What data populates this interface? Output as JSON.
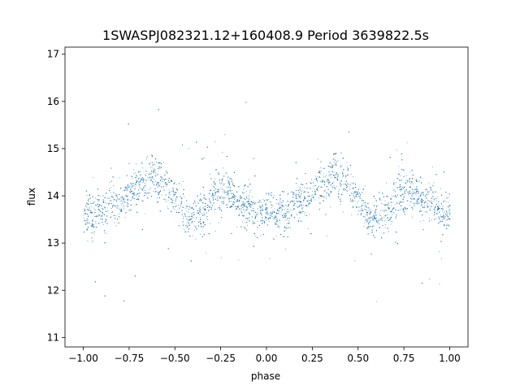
{
  "chart_data": {
    "type": "scatter",
    "title": "1SWASPJ082321.12+160408.9 Period 3639822.5s",
    "xlabel": "phase",
    "ylabel": "flux",
    "xlim": [
      -1.1,
      1.1
    ],
    "ylim": [
      10.8,
      17.15
    ],
    "xticks": [
      -1.0,
      -0.75,
      -0.5,
      -0.25,
      0.0,
      0.25,
      0.5,
      0.75,
      1.0
    ],
    "xtick_labels": [
      "−1.00",
      "−0.75",
      "−0.50",
      "−0.25",
      "0.00",
      "0.25",
      "0.50",
      "0.75",
      "1.00"
    ],
    "yticks": [
      11,
      12,
      13,
      14,
      15,
      16,
      17
    ],
    "ytick_labels": [
      "11",
      "12",
      "13",
      "14",
      "15",
      "16",
      "17"
    ],
    "grid": false,
    "series": [
      {
        "color": "#1f77b4",
        "marker_size": "tiny",
        "x": [
          -1.0,
          -0.97,
          -0.95,
          -0.92,
          -0.9,
          -0.87,
          -0.85,
          -0.82,
          -0.8,
          -0.77,
          -0.75,
          -0.72,
          -0.7,
          -0.67,
          -0.65,
          -0.62,
          -0.6,
          -0.57,
          -0.55,
          -0.52,
          -0.5,
          -0.47,
          -0.45,
          -0.42,
          -0.4,
          -0.37,
          -0.35,
          -0.32,
          -0.3,
          -0.27,
          -0.25,
          -0.22,
          -0.2,
          -0.17,
          -0.15,
          -0.12,
          -0.1,
          -0.07,
          -0.05,
          -0.02,
          0.0,
          0.03,
          0.05,
          0.08,
          0.1,
          0.13,
          0.15,
          0.18,
          0.2,
          0.23,
          0.25,
          0.28,
          0.3,
          0.33,
          0.35,
          0.38,
          0.4,
          0.43,
          0.45,
          0.48,
          0.5,
          0.53,
          0.55,
          0.58,
          0.6,
          0.63,
          0.65,
          0.68,
          0.7,
          0.73,
          0.75,
          0.78,
          0.8,
          0.83,
          0.85,
          0.88,
          0.9,
          0.93,
          0.95,
          0.98,
          1.0
        ],
        "y": [
          13.6,
          13.7,
          13.5,
          13.8,
          13.6,
          13.7,
          13.9,
          13.8,
          13.9,
          14.0,
          14.1,
          14.2,
          14.3,
          14.2,
          14.4,
          14.5,
          14.3,
          14.4,
          14.2,
          14.1,
          13.9,
          13.8,
          13.6,
          13.5,
          13.6,
          13.7,
          13.6,
          13.8,
          14.0,
          14.1,
          14.0,
          14.2,
          14.1,
          14.0,
          13.9,
          13.8,
          13.9,
          13.7,
          13.6,
          13.7,
          13.6,
          13.7,
          13.5,
          13.8,
          13.6,
          13.7,
          13.9,
          13.8,
          13.9,
          14.0,
          14.1,
          14.2,
          14.3,
          14.2,
          14.4,
          14.5,
          14.3,
          14.4,
          14.2,
          14.1,
          13.9,
          13.8,
          13.6,
          13.5,
          13.6,
          13.7,
          13.6,
          13.8,
          14.0,
          14.1,
          14.0,
          14.2,
          14.1,
          14.0,
          13.9,
          13.8,
          13.9,
          13.7,
          13.6,
          13.7,
          13.6
        ]
      }
    ]
  }
}
